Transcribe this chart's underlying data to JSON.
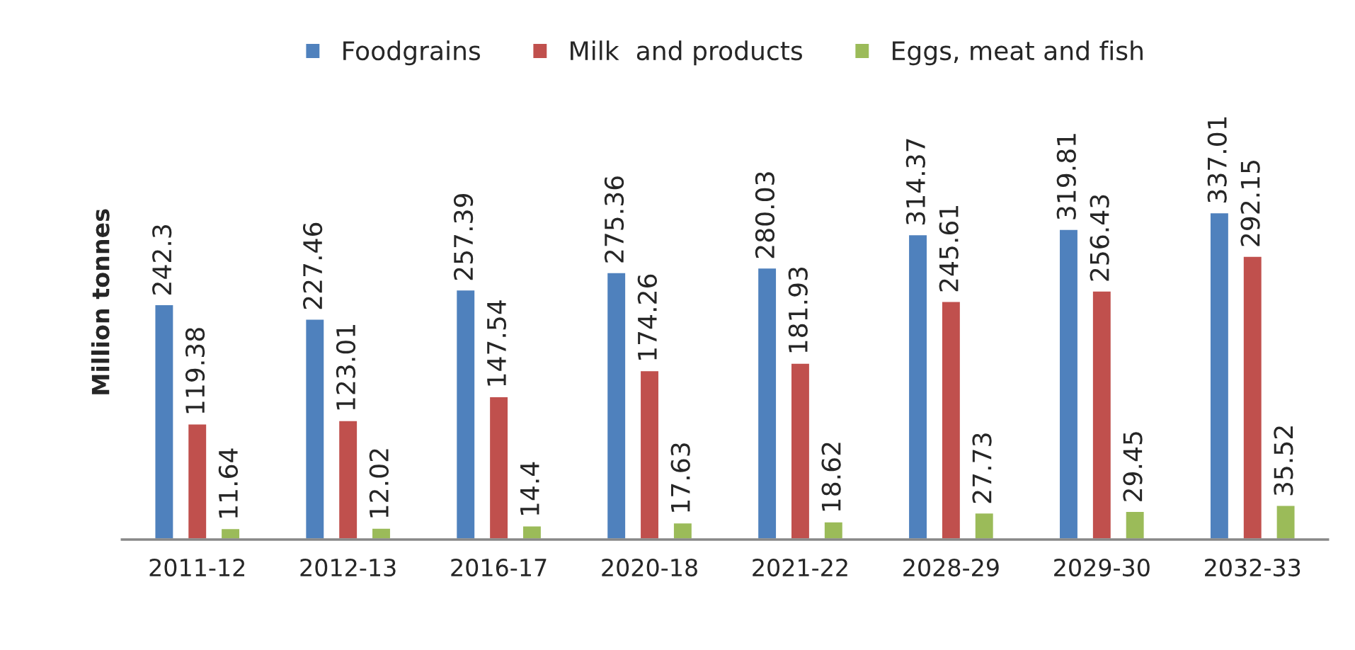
{
  "chart_data": {
    "type": "bar",
    "ylabel": "Million tonnes",
    "categories": [
      "2011-12",
      "2012-13",
      "2016-17",
      "2020-18",
      "2021-22",
      "2028-29",
      "2029-30",
      "2032-33"
    ],
    "series": [
      {
        "name": "Foodgrains",
        "color": "#4f81bd",
        "values": [
          242.3,
          227.46,
          257.39,
          275.36,
          280.03,
          314.37,
          319.81,
          337.01
        ]
      },
      {
        "name": "Milk  and products",
        "color": "#c0504d",
        "values": [
          119.38,
          123.01,
          147.54,
          174.26,
          181.93,
          245.61,
          256.43,
          292.15
        ]
      },
      {
        "name": "Eggs, meat and fish",
        "color": "#9bbb59",
        "values": [
          11.64,
          12.02,
          14.4,
          17.63,
          18.62,
          27.73,
          29.45,
          35.52
        ]
      }
    ],
    "data_labels": true,
    "legend": "top",
    "grid": false
  }
}
